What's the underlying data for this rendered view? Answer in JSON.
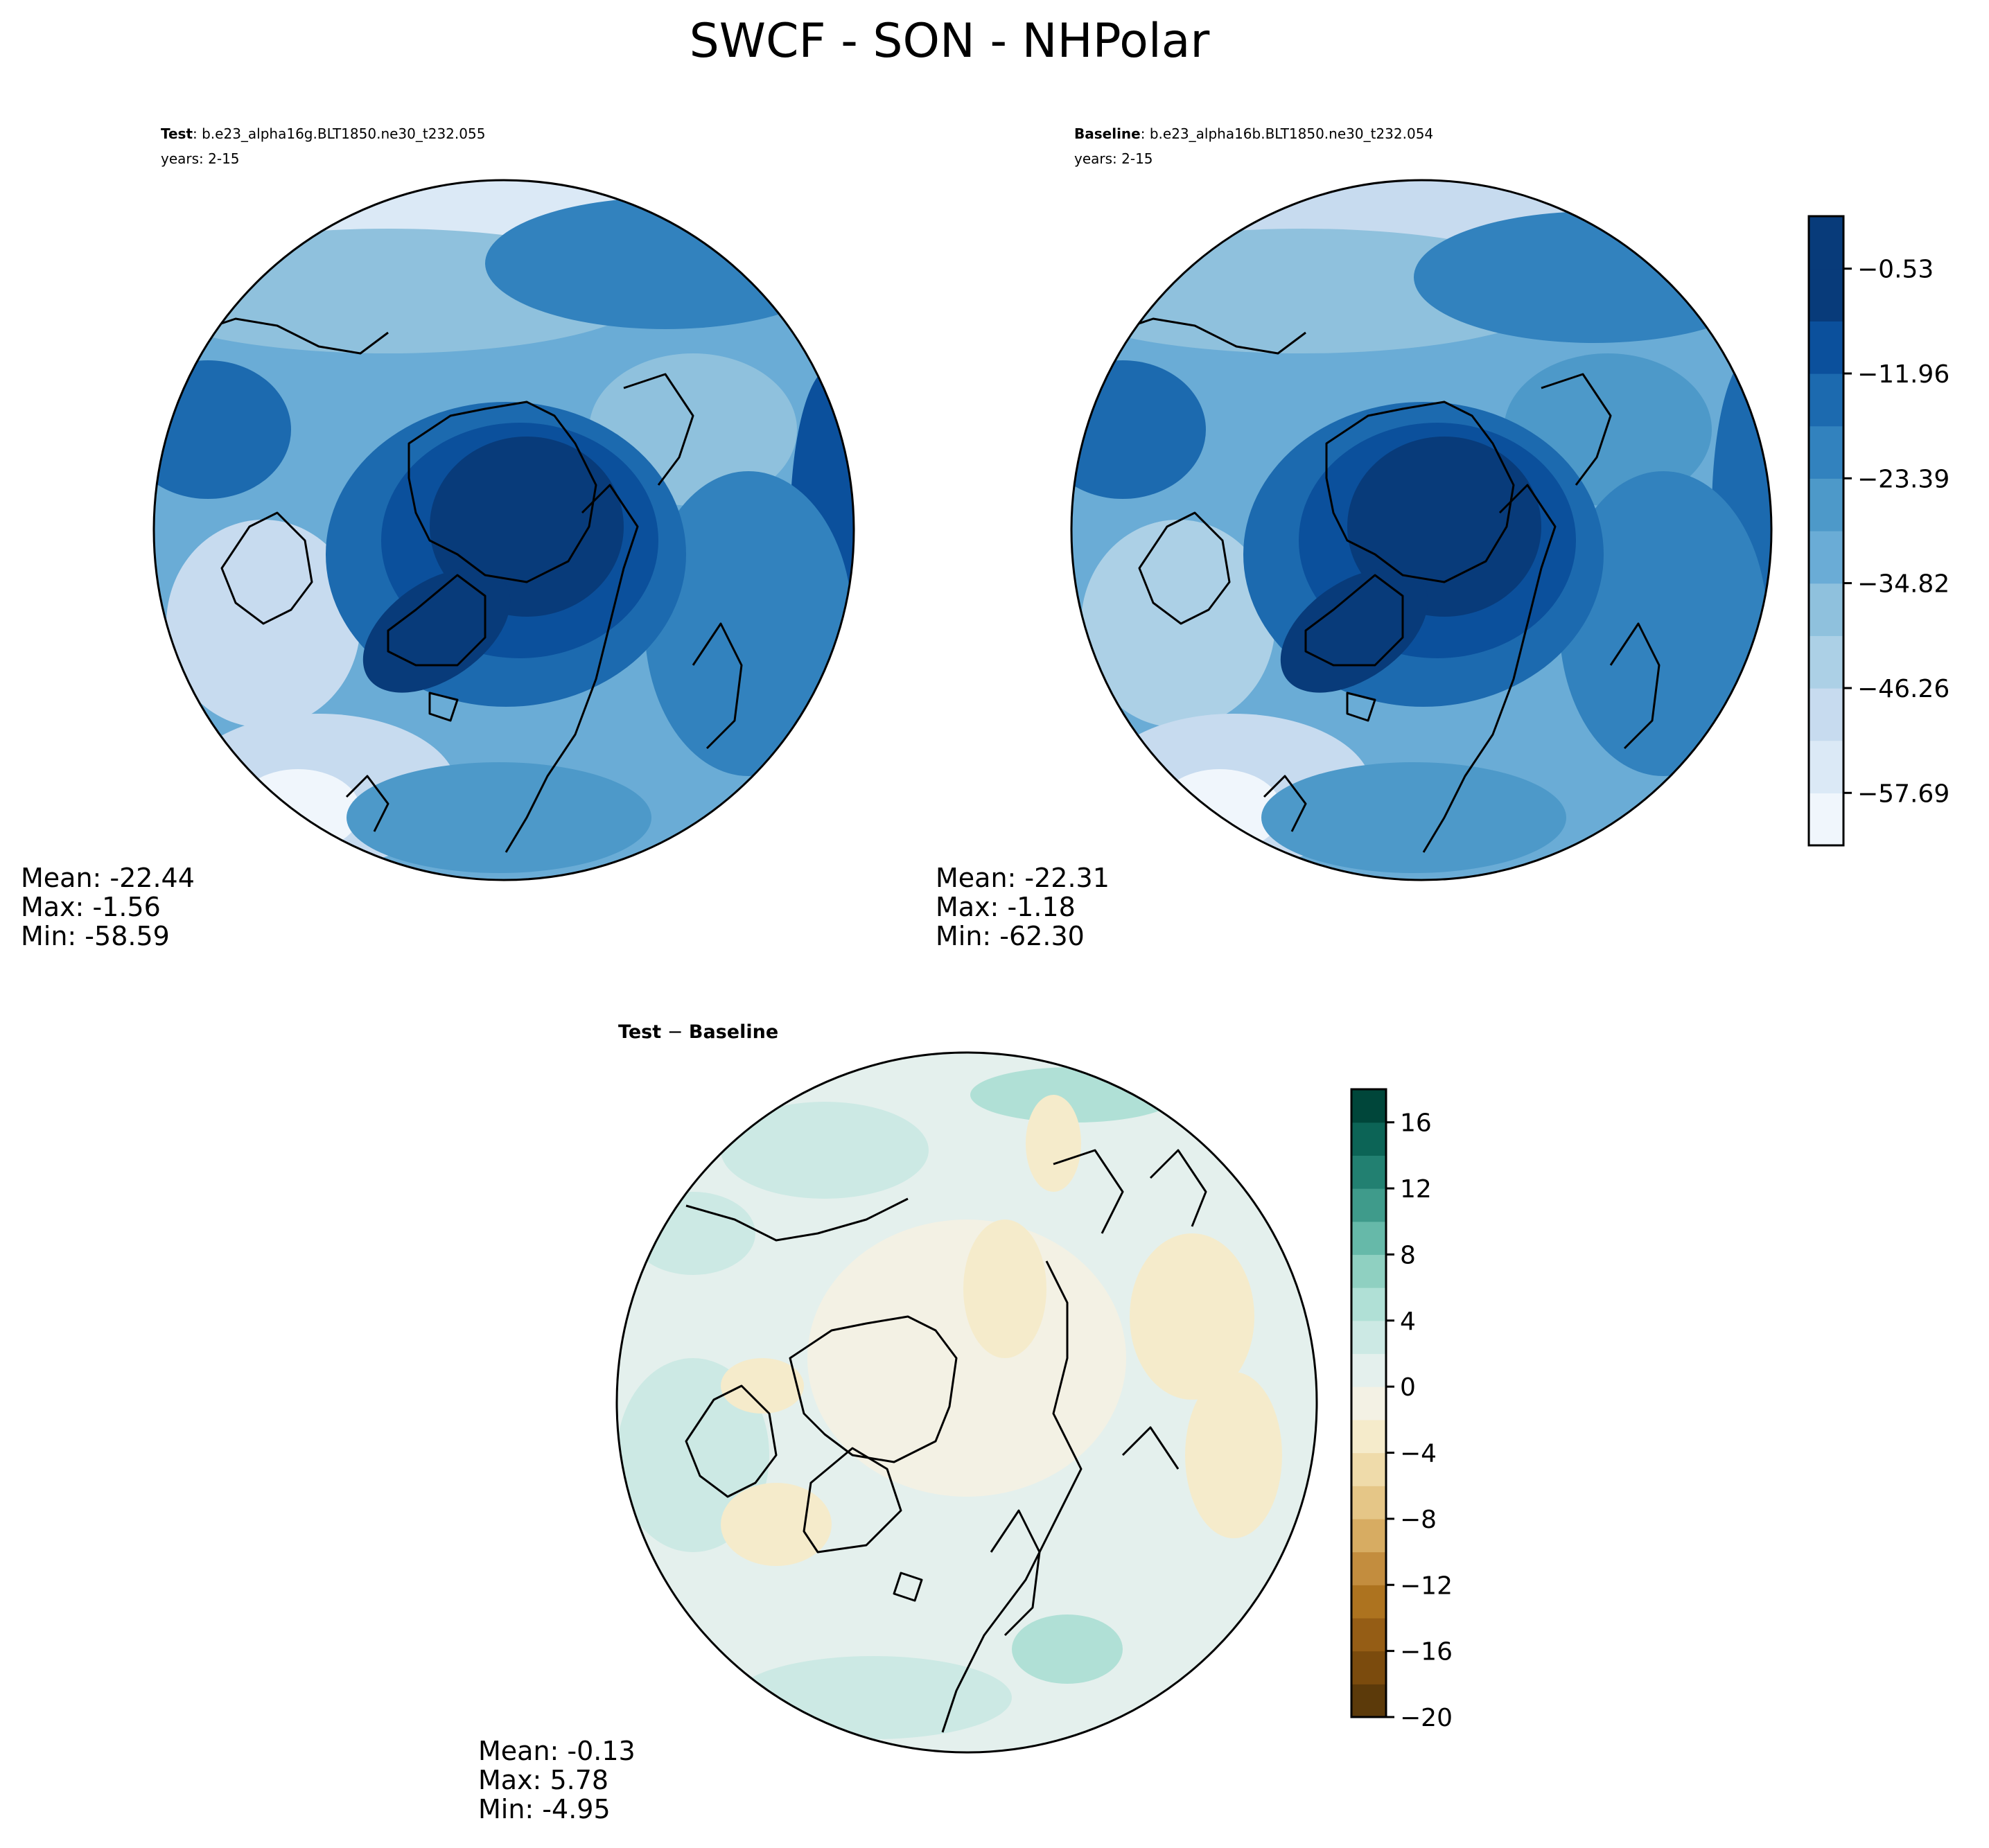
{
  "figure": {
    "title": "SWCF - SON - NHPolar"
  },
  "panels": {
    "test": {
      "label": "Test",
      "case": ": b.e23_alpha16g.BLT1850.ne30_t232.055",
      "years": "years: 2-15",
      "stats": {
        "mean": "Mean: -22.44",
        "max": "Max: -1.56",
        "min": "Min: -58.59"
      }
    },
    "baseline": {
      "label": "Baseline",
      "case": ": b.e23_alpha16b.BLT1850.ne30_t232.054",
      "years": "years: 2-15",
      "stats": {
        "mean": "Mean: -22.31",
        "max": "Max: -1.18",
        "min": "Min: -62.30"
      }
    },
    "diff": {
      "title_a": "Test",
      "title_op": " − ",
      "title_b": "Baseline",
      "stats": {
        "mean": "Mean: -0.13",
        "max": "Max:  5.78",
        "min": "Min: -4.95"
      }
    }
  },
  "chart_data": [
    {
      "type": "heatmap",
      "name": "Test",
      "projection": "north polar stereographic",
      "colormap": "Blues_r",
      "colorbar": {
        "ticks": [
          "−0.53",
          "−11.96",
          "−23.39",
          "−34.82",
          "−46.26",
          "−57.69"
        ],
        "range": [
          -63.41,
          5.19
        ],
        "levels": 12
      },
      "stats": {
        "mean": -22.44,
        "max": -1.56,
        "min": -58.59
      }
    },
    {
      "type": "heatmap",
      "name": "Baseline",
      "projection": "north polar stereographic",
      "colormap": "Blues_r",
      "colorbar": {
        "ticks": [
          "−0.53",
          "−11.96",
          "−23.39",
          "−34.82",
          "−46.26",
          "−57.69"
        ],
        "range": [
          -63.41,
          5.19
        ],
        "levels": 12
      },
      "stats": {
        "mean": -22.31,
        "max": -1.18,
        "min": -62.3
      }
    },
    {
      "type": "heatmap",
      "name": "Test − Baseline",
      "projection": "north polar stereographic",
      "colormap": "BrBG",
      "colorbar": {
        "ticks": [
          "16",
          "12",
          "8",
          "4",
          "0",
          "−4",
          "−8",
          "−12",
          "−16",
          "−20"
        ],
        "range": [
          -20,
          18
        ],
        "levels": 19
      },
      "stats": {
        "mean": -0.13,
        "max": 5.78,
        "min": -4.95
      }
    }
  ],
  "colors": {
    "blues": [
      "#f0f6fc",
      "#dbe9f6",
      "#c7dbef",
      "#acd0e6",
      "#8fc1dd",
      "#6aacd6",
      "#4d99c9",
      "#3282be",
      "#1c6aaf",
      "#0b509c",
      "#083b7a"
    ],
    "brbg": [
      "#5c3a0a",
      "#7b4b0d",
      "#955d15",
      "#ad731f",
      "#c38d3e",
      "#d7ac62",
      "#e5c687",
      "#efdbaa",
      "#f5ebcb",
      "#f3f1e4",
      "#e4f0ed",
      "#cce9e4",
      "#b0e0d6",
      "#8fd0c1",
      "#66b9a9",
      "#3f9b8b",
      "#228071",
      "#0c6456",
      "#00463a"
    ]
  }
}
